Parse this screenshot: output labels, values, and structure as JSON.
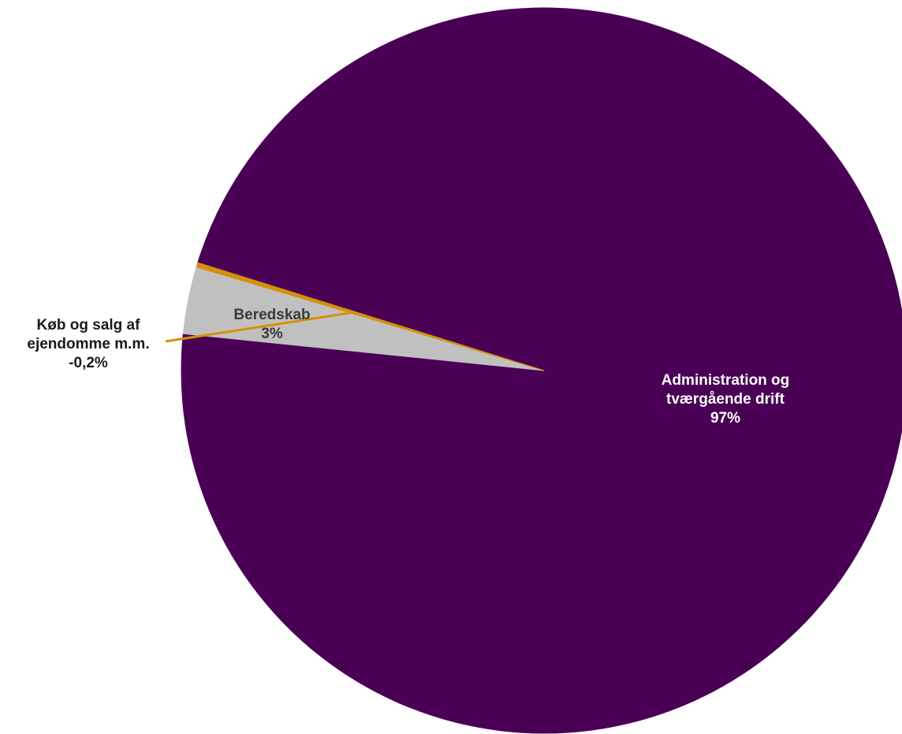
{
  "chart_data": {
    "type": "pie",
    "slices": [
      {
        "label_lines": [
          "Administration og",
          "tværgående drift"
        ],
        "value_label": "97%",
        "value": 97.2,
        "color": "#4A0055",
        "label_color": "#ffffff"
      },
      {
        "label_lines": [
          "Beredskab"
        ],
        "value_label": "3%",
        "value": 3.0,
        "color": "#C0C0C0",
        "label_color": "#3A3A3A"
      },
      {
        "label_lines": [
          "Køb og salg af",
          "ejendomme m.m."
        ],
        "value_label": "-0,2%",
        "value": -0.2,
        "color": "#D4900A",
        "label_color": "#1A1A1A"
      }
    ]
  }
}
